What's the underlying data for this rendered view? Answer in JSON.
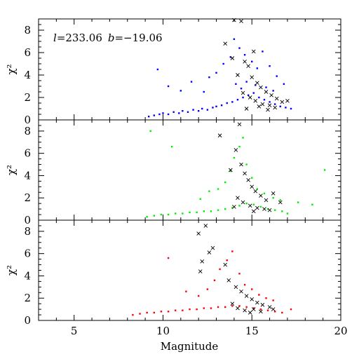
{
  "chart_data": [
    {
      "type": "scatter",
      "panel": "top",
      "annotation": "l=233.06  b=−19.06",
      "ylabel": "χ²",
      "xlim": [
        3,
        20
      ],
      "ylim": [
        0,
        9
      ],
      "xticks": [
        5,
        10,
        15,
        20
      ],
      "yticks": [
        0,
        2,
        4,
        6,
        8
      ],
      "series": [
        {
          "marker": "square",
          "color": "#0000ff",
          "points": [
            [
              9.2,
              0.3
            ],
            [
              9.5,
              0.4
            ],
            [
              9.8,
              0.5
            ],
            [
              10.0,
              0.6
            ],
            [
              10.3,
              0.5
            ],
            [
              10.6,
              0.7
            ],
            [
              10.9,
              0.6
            ],
            [
              11.1,
              0.8
            ],
            [
              11.4,
              0.7
            ],
            [
              11.7,
              0.9
            ],
            [
              12.0,
              0.8
            ],
            [
              12.2,
              1.0
            ],
            [
              12.5,
              0.9
            ],
            [
              12.8,
              1.1
            ],
            [
              13.0,
              1.2
            ],
            [
              13.3,
              1.3
            ],
            [
              13.6,
              1.5
            ],
            [
              13.9,
              1.6
            ],
            [
              14.2,
              1.8
            ],
            [
              14.5,
              2.0
            ],
            [
              14.8,
              2.2
            ],
            [
              15.1,
              2.4
            ],
            [
              15.4,
              2.0
            ],
            [
              15.7,
              1.8
            ],
            [
              16.0,
              1.6
            ],
            [
              16.3,
              1.4
            ],
            [
              16.6,
              1.2
            ],
            [
              16.9,
              1.1
            ],
            [
              17.2,
              1.0
            ],
            [
              9.7,
              4.5
            ],
            [
              10.3,
              3.0
            ],
            [
              11.0,
              2.6
            ],
            [
              11.6,
              3.4
            ],
            [
              12.3,
              2.5
            ],
            [
              12.6,
              3.8
            ],
            [
              13.0,
              4.2
            ],
            [
              13.4,
              5.0
            ],
            [
              13.8,
              5.6
            ],
            [
              14.0,
              7.2
            ],
            [
              14.3,
              6.4
            ],
            [
              14.6,
              5.8
            ],
            [
              15.0,
              5.2
            ],
            [
              15.3,
              4.6
            ],
            [
              15.6,
              6.1
            ],
            [
              16.0,
              4.8
            ],
            [
              16.4,
              3.9
            ],
            [
              16.8,
              3.2
            ],
            [
              14.1,
              3.2
            ],
            [
              14.4,
              2.8
            ],
            [
              14.7,
              3.4
            ],
            [
              15.2,
              3.1
            ],
            [
              15.8,
              2.9
            ],
            [
              16.2,
              2.6
            ]
          ]
        },
        {
          "marker": "cross",
          "color": "#000000",
          "points": [
            [
              13.5,
              6.8
            ],
            [
              13.9,
              5.5
            ],
            [
              14.0,
              8.9
            ],
            [
              14.2,
              4.0
            ],
            [
              14.4,
              8.8
            ],
            [
              14.6,
              5.2
            ],
            [
              14.8,
              4.8
            ],
            [
              15.0,
              3.8
            ],
            [
              15.1,
              6.1
            ],
            [
              15.3,
              3.3
            ],
            [
              15.5,
              2.9
            ],
            [
              15.8,
              2.5
            ],
            [
              16.1,
              2.2
            ],
            [
              16.4,
              1.9
            ],
            [
              16.7,
              1.6
            ],
            [
              17.0,
              1.7
            ],
            [
              14.5,
              2.4
            ],
            [
              14.9,
              2.0
            ],
            [
              15.2,
              1.7
            ],
            [
              15.6,
              1.4
            ],
            [
              16.0,
              1.3
            ],
            [
              16.3,
              1.1
            ],
            [
              14.7,
              1.0
            ],
            [
              15.4,
              1.2
            ],
            [
              15.9,
              0.9
            ]
          ]
        }
      ]
    },
    {
      "type": "scatter",
      "panel": "middle",
      "ylabel": "χ²",
      "xlim": [
        3,
        20
      ],
      "ylim": [
        0,
        9
      ],
      "xticks": [
        5,
        10,
        15,
        20
      ],
      "yticks": [
        0,
        2,
        4,
        6,
        8
      ],
      "series": [
        {
          "marker": "square",
          "color": "#00ee00",
          "points": [
            [
              9.1,
              0.3
            ],
            [
              9.5,
              0.4
            ],
            [
              9.9,
              0.5
            ],
            [
              10.3,
              0.5
            ],
            [
              10.7,
              0.6
            ],
            [
              11.1,
              0.6
            ],
            [
              11.5,
              0.7
            ],
            [
              11.9,
              0.7
            ],
            [
              12.3,
              0.8
            ],
            [
              12.7,
              0.8
            ],
            [
              13.1,
              0.9
            ],
            [
              13.5,
              1.0
            ],
            [
              13.9,
              1.1
            ],
            [
              14.3,
              1.3
            ],
            [
              14.7,
              1.5
            ],
            [
              15.1,
              1.4
            ],
            [
              15.5,
              1.2
            ],
            [
              15.9,
              1.0
            ],
            [
              16.3,
              0.9
            ],
            [
              16.7,
              0.8
            ],
            [
              17.0,
              0.6
            ],
            [
              9.3,
              8.0
            ],
            [
              10.5,
              6.6
            ],
            [
              12.1,
              1.9
            ],
            [
              12.6,
              2.6
            ],
            [
              13.1,
              2.8
            ],
            [
              13.5,
              3.4
            ],
            [
              13.8,
              4.4
            ],
            [
              14.0,
              5.6
            ],
            [
              14.3,
              6.6
            ],
            [
              14.5,
              7.4
            ],
            [
              14.7,
              5.0
            ],
            [
              15.0,
              3.8
            ],
            [
              15.3,
              2.8
            ],
            [
              15.7,
              2.4
            ],
            [
              16.2,
              2.0
            ],
            [
              16.6,
              1.8
            ],
            [
              19.1,
              4.5
            ],
            [
              18.4,
              1.4
            ],
            [
              17.6,
              1.6
            ]
          ]
        },
        {
          "marker": "cross",
          "color": "#000000",
          "points": [
            [
              13.2,
              7.6
            ],
            [
              13.8,
              4.5
            ],
            [
              14.1,
              6.3
            ],
            [
              14.3,
              8.6
            ],
            [
              14.4,
              5.0
            ],
            [
              14.6,
              4.2
            ],
            [
              14.8,
              3.6
            ],
            [
              15.0,
              3.0
            ],
            [
              15.2,
              2.6
            ],
            [
              15.5,
              2.2
            ],
            [
              15.8,
              1.8
            ],
            [
              16.2,
              2.4
            ],
            [
              16.6,
              1.6
            ],
            [
              14.2,
              2.0
            ],
            [
              14.5,
              1.6
            ],
            [
              14.9,
              1.3
            ],
            [
              15.3,
              1.1
            ],
            [
              15.7,
              1.0
            ],
            [
              16.0,
              0.9
            ],
            [
              14.0,
              1.2
            ],
            [
              15.1,
              0.8
            ]
          ]
        }
      ]
    },
    {
      "type": "scatter",
      "panel": "bottom",
      "ylabel": "χ²",
      "xlim": [
        3,
        20
      ],
      "ylim": [
        0,
        9
      ],
      "xticks": [
        5,
        10,
        15,
        20
      ],
      "yticks": [
        0,
        2,
        4,
        6,
        8
      ],
      "xlabel": "Magnitude",
      "series": [
        {
          "marker": "square",
          "color": "#ff0000",
          "points": [
            [
              8.3,
              0.5
            ],
            [
              8.7,
              0.6
            ],
            [
              9.1,
              0.7
            ],
            [
              9.5,
              0.7
            ],
            [
              9.9,
              0.8
            ],
            [
              10.3,
              0.8
            ],
            [
              10.7,
              0.9
            ],
            [
              11.1,
              0.9
            ],
            [
              11.5,
              1.0
            ],
            [
              11.9,
              1.0
            ],
            [
              12.3,
              1.1
            ],
            [
              12.7,
              1.1
            ],
            [
              13.1,
              1.2
            ],
            [
              13.5,
              1.2
            ],
            [
              13.9,
              1.3
            ],
            [
              14.3,
              1.3
            ],
            [
              14.7,
              1.2
            ],
            [
              15.1,
              1.1
            ],
            [
              15.5,
              1.0
            ],
            [
              15.9,
              0.9
            ],
            [
              16.3,
              0.8
            ],
            [
              16.7,
              0.7
            ],
            [
              10.3,
              5.6
            ],
            [
              11.3,
              2.6
            ],
            [
              12.0,
              2.2
            ],
            [
              12.5,
              2.8
            ],
            [
              12.9,
              3.6
            ],
            [
              13.2,
              4.6
            ],
            [
              13.6,
              5.4
            ],
            [
              13.9,
              6.2
            ],
            [
              14.3,
              4.2
            ],
            [
              14.6,
              3.2
            ],
            [
              15.0,
              2.8
            ],
            [
              15.4,
              2.3
            ],
            [
              15.8,
              2.0
            ],
            [
              16.2,
              1.8
            ],
            [
              17.2,
              1.0
            ]
          ]
        },
        {
          "marker": "cross",
          "color": "#000000",
          "points": [
            [
              12.0,
              7.8
            ],
            [
              12.4,
              8.5
            ],
            [
              12.2,
              5.3
            ],
            [
              12.8,
              6.5
            ],
            [
              12.6,
              6.1
            ],
            [
              12.1,
              4.4
            ],
            [
              13.5,
              5.0
            ],
            [
              13.7,
              3.6
            ],
            [
              14.1,
              3.0
            ],
            [
              14.4,
              2.6
            ],
            [
              14.7,
              2.2
            ],
            [
              15.0,
              1.9
            ],
            [
              15.3,
              1.6
            ],
            [
              15.6,
              1.4
            ],
            [
              16.0,
              1.2
            ],
            [
              14.2,
              1.1
            ],
            [
              14.6,
              0.9
            ],
            [
              15.1,
              1.0
            ],
            [
              15.5,
              0.8
            ],
            [
              13.9,
              1.5
            ],
            [
              14.9,
              0.7
            ],
            [
              16.2,
              1.0
            ]
          ]
        }
      ]
    }
  ],
  "axes": {
    "xlabel": "Magnitude",
    "ylabel": "χ²",
    "xtick_labels": [
      "5",
      "10",
      "15",
      "20"
    ],
    "ytick_labels": [
      "0",
      "2",
      "4",
      "6",
      "8"
    ]
  },
  "annotation": {
    "l_name": "l",
    "l_value": "=233.06",
    "b_name": "b",
    "b_value": "=−19.06"
  }
}
